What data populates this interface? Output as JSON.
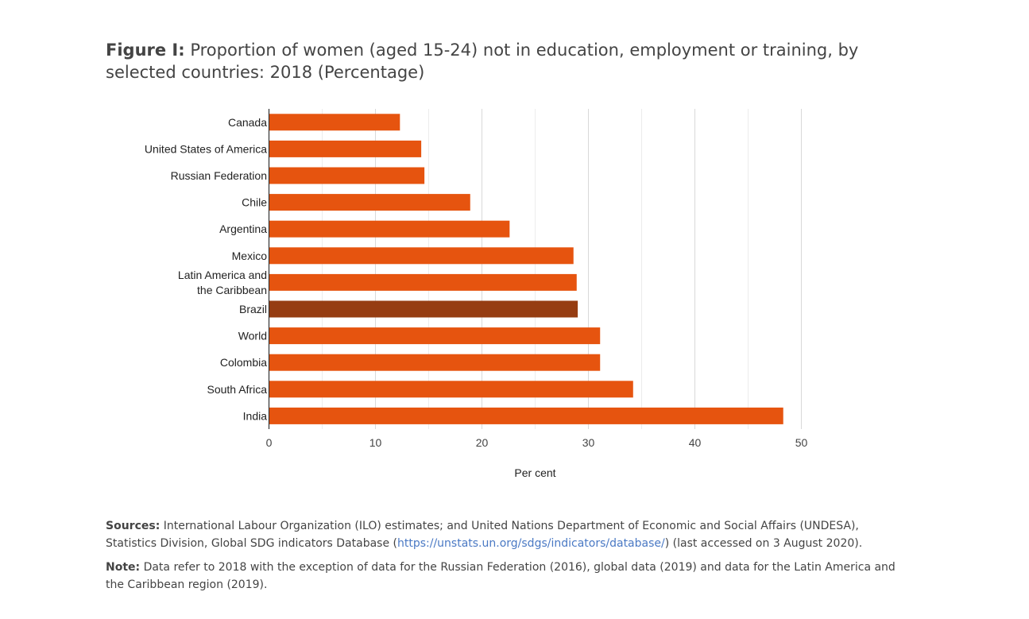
{
  "title": {
    "prefix": "Figure I:",
    "text": "Proportion of women (aged 15-24) not in education, employment or training, by selected countries: 2018 (Percentage)"
  },
  "colors": {
    "bar": "#e6540f",
    "highlight": "#963d12",
    "grid": "#d9d9d9",
    "axis": "#333333"
  },
  "chart_data": {
    "type": "bar",
    "orientation": "horizontal",
    "categories": [
      "Canada",
      "United States of America",
      "Russian Federation",
      "Chile",
      "Argentina",
      "Mexico",
      "Latin America and the Caribbean",
      "Brazil",
      "World",
      "Colombia",
      "South Africa",
      "India"
    ],
    "values": [
      12.3,
      14.3,
      14.6,
      18.9,
      22.6,
      28.6,
      28.9,
      29.0,
      31.1,
      31.1,
      34.2,
      48.3
    ],
    "highlight": "Brazil",
    "xlabel": "Per cent",
    "ylabel": "",
    "xlim": [
      0,
      50
    ],
    "xticks": [
      0,
      10,
      20,
      30,
      40,
      50
    ],
    "grid": true
  },
  "notes": {
    "sources_label": "Sources:",
    "sources_text": " International Labour Organization (ILO) estimates; and United Nations Department of Economic and Social Affairs (UNDESA), Statistics Division, Global SDG indicators Database (",
    "sources_link": "https://unstats.un.org/sdgs/indicators/database/",
    "sources_tail": ") (last accessed on 3 August 2020).",
    "note_label": "Note:",
    "note_text": " Data refer to 2018 with the exception of data for the Russian Federation (2016), global data (2019) and data for the Latin America and the Caribbean region (2019)."
  }
}
